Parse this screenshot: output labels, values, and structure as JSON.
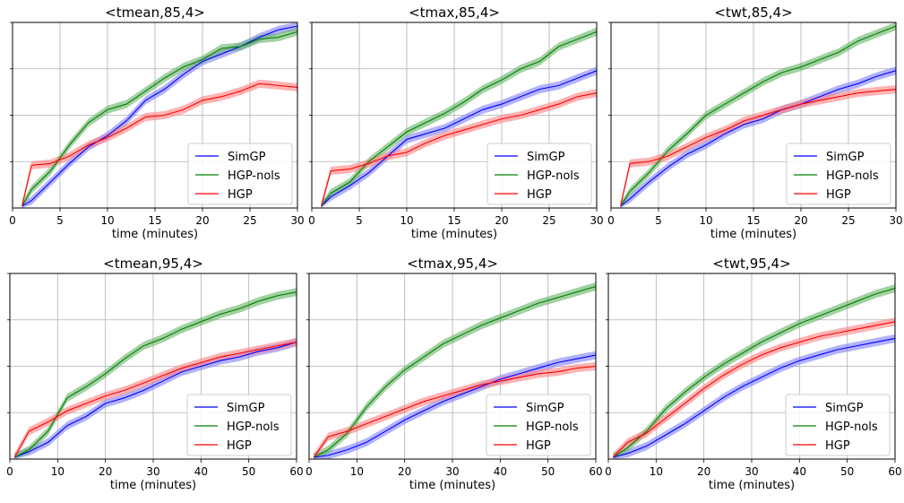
{
  "chart_data": [
    {
      "type": "line",
      "title": "<tmean,85,4>",
      "xlabel": "time (minutes)",
      "xlim": [
        0,
        30
      ],
      "ylim": [
        0,
        1
      ],
      "xticks": [
        0,
        5,
        10,
        15,
        20,
        25,
        30
      ],
      "grid": true,
      "legend_position": "lower-right",
      "x": [
        1,
        2,
        4,
        6,
        8,
        10,
        12,
        14,
        16,
        18,
        20,
        22,
        24,
        26,
        28,
        30
      ],
      "series": [
        {
          "name": "SimGP",
          "color": "#0000ff",
          "values": [
            0.01,
            0.04,
            0.14,
            0.24,
            0.33,
            0.39,
            0.47,
            0.58,
            0.64,
            0.72,
            0.79,
            0.83,
            0.87,
            0.92,
            0.96,
            0.98
          ]
        },
        {
          "name": "HGP-nols",
          "color": "#008000",
          "values": [
            0.01,
            0.1,
            0.2,
            0.34,
            0.46,
            0.53,
            0.56,
            0.63,
            0.7,
            0.76,
            0.8,
            0.86,
            0.87,
            0.91,
            0.92,
            0.95
          ]
        },
        {
          "name": "HGP",
          "color": "#ff0000",
          "values": [
            0.01,
            0.23,
            0.24,
            0.28,
            0.34,
            0.38,
            0.43,
            0.49,
            0.5,
            0.53,
            0.58,
            0.6,
            0.63,
            0.67,
            0.66,
            0.65
          ]
        }
      ]
    },
    {
      "type": "line",
      "title": "<tmax,85,4>",
      "xlabel": "time (minutes)",
      "xlim": [
        0,
        30
      ],
      "ylim": [
        0,
        1
      ],
      "xticks": [
        0,
        5,
        10,
        15,
        20,
        25,
        30
      ],
      "grid": true,
      "legend_position": "lower-right",
      "x": [
        1,
        2,
        4,
        6,
        8,
        10,
        12,
        14,
        16,
        18,
        20,
        22,
        24,
        26,
        28,
        30
      ],
      "series": [
        {
          "name": "SimGP",
          "color": "#0000ff",
          "values": [
            0.01,
            0.06,
            0.12,
            0.19,
            0.28,
            0.37,
            0.4,
            0.43,
            0.48,
            0.53,
            0.56,
            0.6,
            0.64,
            0.66,
            0.7,
            0.74
          ]
        },
        {
          "name": "HGP-nols",
          "color": "#008000",
          "values": [
            0.01,
            0.08,
            0.14,
            0.25,
            0.33,
            0.41,
            0.46,
            0.51,
            0.57,
            0.64,
            0.69,
            0.75,
            0.79,
            0.87,
            0.91,
            0.95
          ]
        },
        {
          "name": "HGP",
          "color": "#ff0000",
          "values": [
            0.01,
            0.2,
            0.21,
            0.24,
            0.28,
            0.3,
            0.35,
            0.39,
            0.42,
            0.45,
            0.48,
            0.5,
            0.53,
            0.56,
            0.6,
            0.62
          ]
        }
      ]
    },
    {
      "type": "line",
      "title": "<twt,85,4>",
      "xlabel": "time (minutes)",
      "xlim": [
        0,
        30
      ],
      "ylim": [
        0,
        1
      ],
      "xticks": [
        0,
        5,
        10,
        15,
        20,
        25,
        30
      ],
      "grid": true,
      "legend_position": "lower-right",
      "x": [
        1,
        2,
        4,
        6,
        8,
        10,
        12,
        14,
        16,
        18,
        20,
        22,
        24,
        26,
        28,
        30
      ],
      "series": [
        {
          "name": "SimGP",
          "color": "#0000ff",
          "values": [
            0.01,
            0.05,
            0.14,
            0.22,
            0.29,
            0.34,
            0.4,
            0.45,
            0.48,
            0.53,
            0.56,
            0.6,
            0.64,
            0.67,
            0.71,
            0.74
          ]
        },
        {
          "name": "HGP-nols",
          "color": "#008000",
          "values": [
            0.01,
            0.09,
            0.19,
            0.31,
            0.4,
            0.5,
            0.56,
            0.62,
            0.68,
            0.73,
            0.76,
            0.8,
            0.84,
            0.9,
            0.94,
            0.98
          ]
        },
        {
          "name": "HGP",
          "color": "#ff0000",
          "values": [
            0.01,
            0.24,
            0.25,
            0.28,
            0.33,
            0.38,
            0.42,
            0.47,
            0.5,
            0.53,
            0.56,
            0.58,
            0.6,
            0.62,
            0.63,
            0.64
          ]
        }
      ]
    },
    {
      "type": "line",
      "title": "<tmean,95,4>",
      "xlabel": "time (minutes)",
      "xlim": [
        0,
        60
      ],
      "ylim": [
        0,
        1
      ],
      "xticks": [
        0,
        10,
        20,
        30,
        40,
        50,
        60
      ],
      "grid": true,
      "legend_position": "lower-right",
      "x": [
        1,
        4,
        8,
        12,
        16,
        20,
        24,
        28,
        32,
        36,
        40,
        44,
        48,
        52,
        56,
        60
      ],
      "series": [
        {
          "name": "SimGP",
          "color": "#0000ff",
          "values": [
            0.01,
            0.04,
            0.09,
            0.18,
            0.23,
            0.3,
            0.33,
            0.37,
            0.42,
            0.47,
            0.5,
            0.53,
            0.55,
            0.58,
            0.6,
            0.63
          ]
        },
        {
          "name": "HGP-nols",
          "color": "#008000",
          "values": [
            0.01,
            0.05,
            0.15,
            0.33,
            0.39,
            0.46,
            0.54,
            0.61,
            0.65,
            0.7,
            0.74,
            0.78,
            0.81,
            0.85,
            0.88,
            0.9
          ]
        },
        {
          "name": "HGP",
          "color": "#ff0000",
          "values": [
            0.01,
            0.15,
            0.2,
            0.26,
            0.3,
            0.34,
            0.37,
            0.41,
            0.45,
            0.49,
            0.52,
            0.55,
            0.57,
            0.59,
            0.61,
            0.63
          ]
        }
      ]
    },
    {
      "type": "line",
      "title": "<tmax,95,4>",
      "xlabel": "time (minutes)",
      "xlim": [
        0,
        60
      ],
      "ylim": [
        0,
        1
      ],
      "xticks": [
        0,
        10,
        20,
        30,
        40,
        50,
        60
      ],
      "grid": true,
      "legend_position": "lower-right",
      "x": [
        1,
        4,
        8,
        12,
        16,
        20,
        24,
        28,
        32,
        36,
        40,
        44,
        48,
        52,
        56,
        60
      ],
      "series": [
        {
          "name": "SimGP",
          "color": "#0000ff",
          "values": [
            0.01,
            0.02,
            0.05,
            0.09,
            0.15,
            0.21,
            0.26,
            0.31,
            0.35,
            0.39,
            0.43,
            0.46,
            0.49,
            0.52,
            0.54,
            0.56
          ]
        },
        {
          "name": "HGP-nols",
          "color": "#008000",
          "values": [
            0.01,
            0.05,
            0.14,
            0.28,
            0.39,
            0.48,
            0.55,
            0.62,
            0.67,
            0.72,
            0.76,
            0.8,
            0.84,
            0.87,
            0.9,
            0.93
          ]
        },
        {
          "name": "HGP",
          "color": "#ff0000",
          "values": [
            0.01,
            0.12,
            0.15,
            0.19,
            0.23,
            0.27,
            0.31,
            0.34,
            0.37,
            0.4,
            0.42,
            0.44,
            0.46,
            0.47,
            0.49,
            0.5
          ]
        }
      ]
    },
    {
      "type": "line",
      "title": "<twt,95,4>",
      "xlabel": "time (minutes)",
      "xlim": [
        0,
        60
      ],
      "ylim": [
        0,
        1
      ],
      "xticks": [
        0,
        10,
        20,
        30,
        40,
        50,
        60
      ],
      "grid": true,
      "legend_position": "lower-right",
      "x": [
        1,
        4,
        8,
        12,
        16,
        20,
        24,
        28,
        32,
        36,
        40,
        44,
        48,
        52,
        56,
        60
      ],
      "series": [
        {
          "name": "SimGP",
          "color": "#0000ff",
          "values": [
            0.01,
            0.03,
            0.07,
            0.13,
            0.19,
            0.26,
            0.33,
            0.39,
            0.44,
            0.49,
            0.53,
            0.56,
            0.59,
            0.61,
            0.63,
            0.65
          ]
        },
        {
          "name": "HGP-nols",
          "color": "#008000",
          "values": [
            0.01,
            0.06,
            0.15,
            0.27,
            0.36,
            0.44,
            0.51,
            0.57,
            0.63,
            0.68,
            0.73,
            0.77,
            0.81,
            0.85,
            0.89,
            0.92
          ]
        },
        {
          "name": "HGP",
          "color": "#ff0000",
          "values": [
            0.01,
            0.09,
            0.14,
            0.22,
            0.3,
            0.38,
            0.45,
            0.51,
            0.56,
            0.6,
            0.63,
            0.66,
            0.68,
            0.7,
            0.72,
            0.74
          ]
        }
      ]
    }
  ]
}
